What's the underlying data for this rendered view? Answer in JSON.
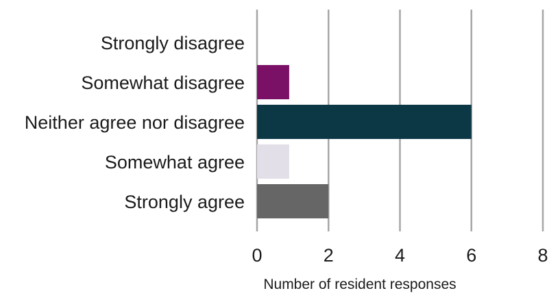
{
  "chart_data": {
    "type": "bar",
    "orientation": "horizontal",
    "categories": [
      "Strongly disagree",
      "Somewhat disagree",
      "Neither agree nor disagree",
      "Somewhat agree",
      "Strongly agree"
    ],
    "values": [
      0,
      0.9,
      6,
      0.9,
      2
    ],
    "colors": [
      "#7a1166",
      "#7a1166",
      "#0c3845",
      "#e2dfe8",
      "#666666"
    ],
    "xlabel": "Number of resident responses",
    "ylabel": "",
    "title": "",
    "xlim": [
      0,
      8
    ],
    "xticks": [
      0,
      2,
      4,
      6,
      8
    ],
    "grid": "vertical",
    "gridColor": "#a6a6a6",
    "legend": "none"
  }
}
